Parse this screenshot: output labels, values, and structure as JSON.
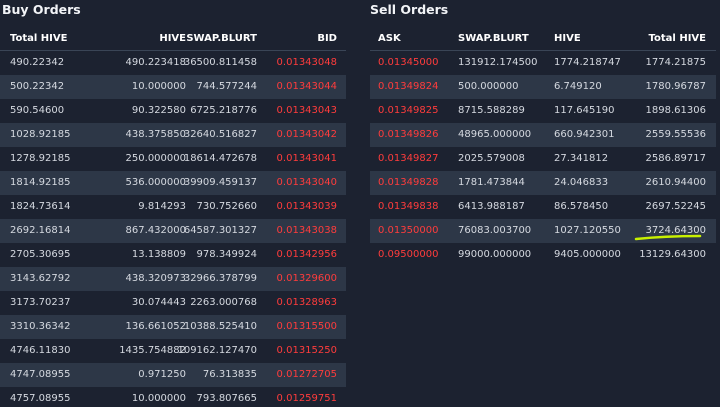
{
  "buy_orders": {
    "title": "Buy Orders",
    "columns": [
      "Total HIVE",
      "HIVE",
      "SWAP.BLURT",
      "BID"
    ],
    "rows": [
      [
        "490.22342",
        "490.223418",
        "36500.811458",
        "0.01343048"
      ],
      [
        "500.22342",
        "10.000000",
        "744.577244",
        "0.01343044"
      ],
      [
        "590.54600",
        "90.322580",
        "6725.218776",
        "0.01343043"
      ],
      [
        "1028.92185",
        "438.375850",
        "32640.516827",
        "0.01343042"
      ],
      [
        "1278.92185",
        "250.000000",
        "18614.472678",
        "0.01343041"
      ],
      [
        "1814.92185",
        "536.000000",
        "39909.459137",
        "0.01343040"
      ],
      [
        "1824.73614",
        "9.814293",
        "730.752660",
        "0.01343039"
      ],
      [
        "2692.16814",
        "867.432000",
        "64587.301327",
        "0.01343038"
      ],
      [
        "2705.30695",
        "13.138809",
        "978.349924",
        "0.01342956"
      ],
      [
        "3143.62792",
        "438.320973",
        "32966.378799",
        "0.01329600"
      ],
      [
        "3173.70237",
        "30.074443",
        "2263.000768",
        "0.01328963"
      ],
      [
        "3310.36342",
        "136.661052",
        "10388.525410",
        "0.01315500"
      ],
      [
        "4746.11830",
        "1435.754882",
        "109162.127470",
        "0.01315250"
      ],
      [
        "4747.08955",
        "0.971250",
        "76.313835",
        "0.01272705"
      ],
      [
        "4757.08955",
        "10.000000",
        "793.807665",
        "0.01259751"
      ]
    ]
  },
  "sell_orders": {
    "title": "Sell Orders",
    "columns": [
      "ASK",
      "SWAP.BLURT",
      "HIVE",
      "Total HIVE"
    ],
    "rows": [
      [
        "0.01345000",
        "131912.174500",
        "1774.218747",
        "1774.21875"
      ],
      [
        "0.01349824",
        "500.000000",
        "6.749120",
        "1780.96787"
      ],
      [
        "0.01349825",
        "8715.588289",
        "117.645190",
        "1898.61306"
      ],
      [
        "0.01349826",
        "48965.000000",
        "660.942301",
        "2559.55536"
      ],
      [
        "0.01349827",
        "2025.579008",
        "27.341812",
        "2586.89717"
      ],
      [
        "0.01349828",
        "1781.473844",
        "24.046833",
        "2610.94400"
      ],
      [
        "0.01349838",
        "6413.988187",
        "86.578450",
        "2697.52245"
      ],
      [
        "0.01350000",
        "76083.003700",
        "1027.120550",
        "3724.64300"
      ],
      [
        "0.09500000",
        "99000.000000",
        "9405.000000",
        "13129.64300"
      ]
    ]
  }
}
